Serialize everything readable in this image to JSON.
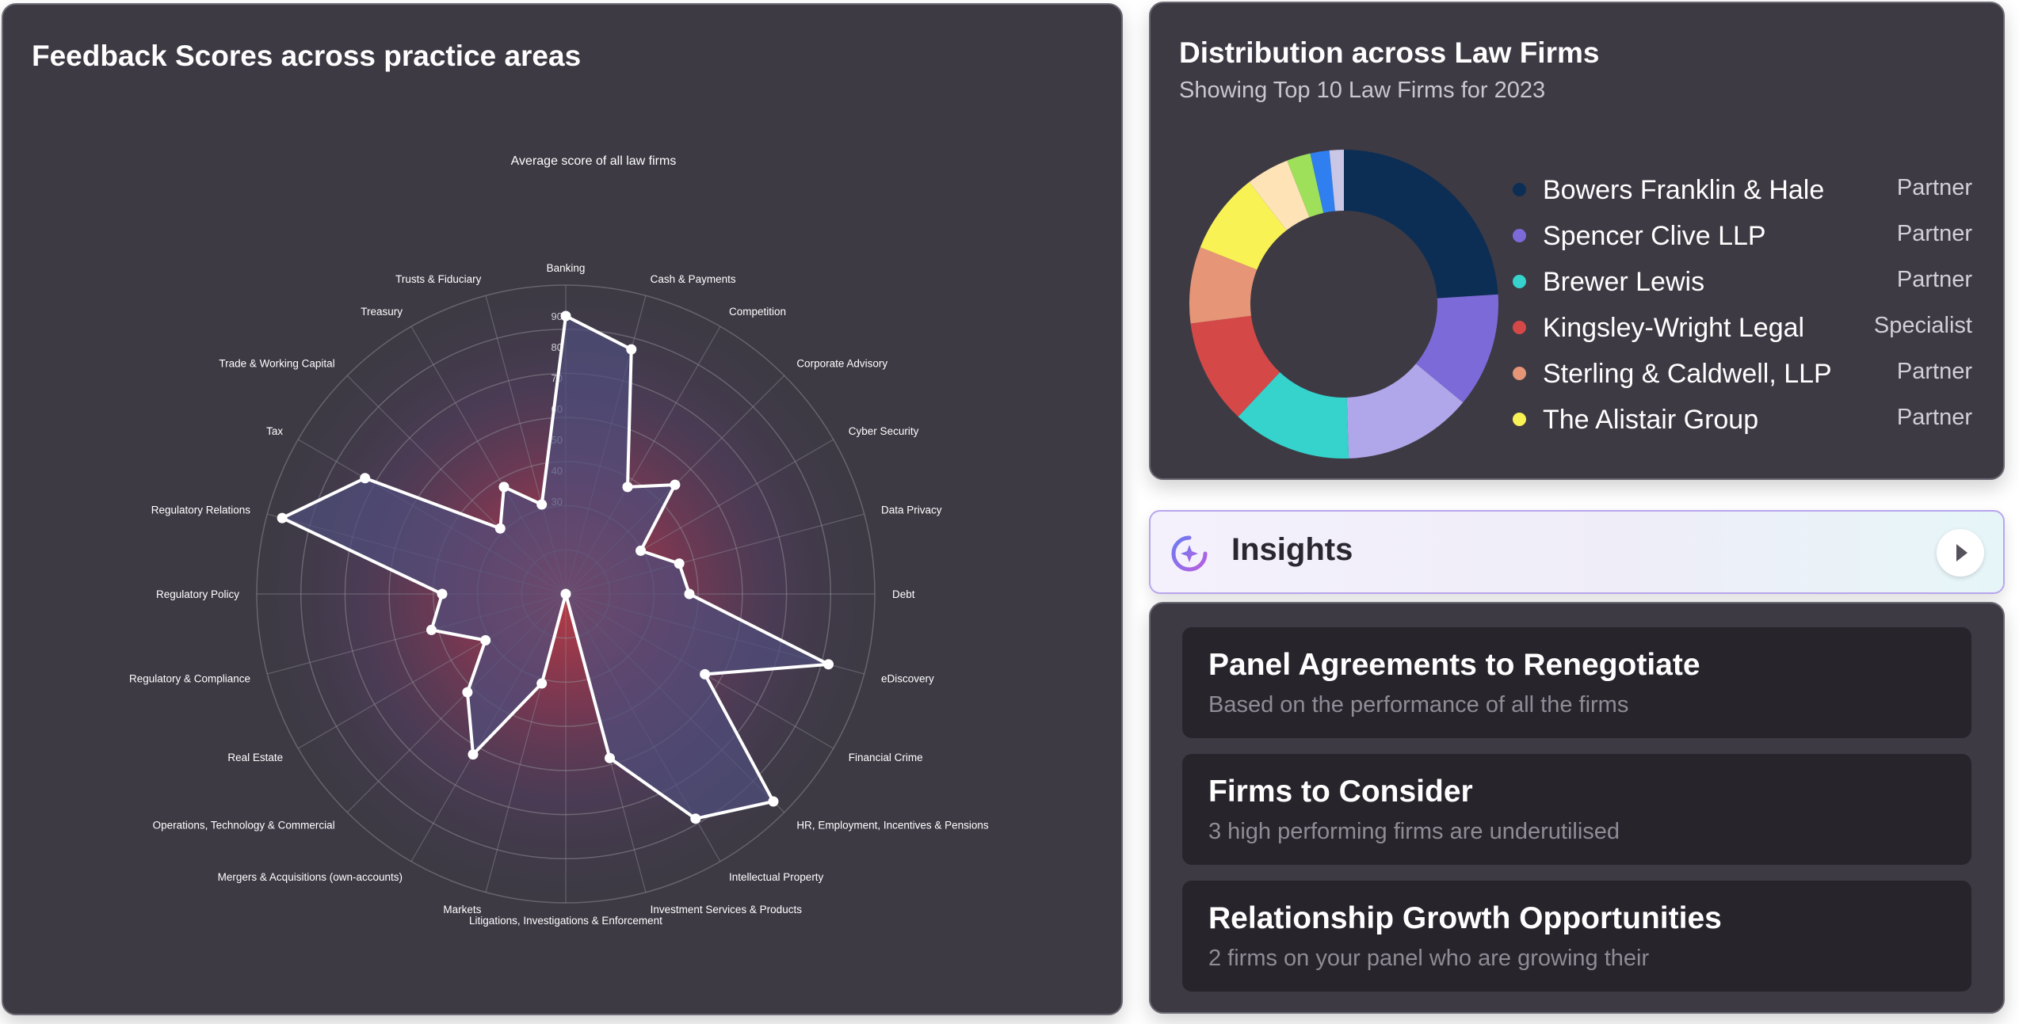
{
  "radar_panel": {
    "title": "Feedback Scores across practice areas"
  },
  "chart_data": [
    {
      "type": "radar",
      "title": "Average score of all law firms",
      "categories": [
        "Banking",
        "Cash & Payments",
        "Competition",
        "Corporate Advisory",
        "Cyber Security",
        "Data Privacy",
        "Debt",
        "eDiscovery",
        "Financial Crime",
        "HR, Employment, Incentives & Pensions",
        "Intellectual Property",
        "Investment Services & Products",
        "Litigations, Investigations & Enforcement",
        "Markets",
        "Mergers & Acquisitions (own-accounts)",
        "Operations, Technology & Commercial",
        "Real Estate",
        "Regulatory & Compliance",
        "Regulatory Policy",
        "Regulatory  Relations",
        "Tax",
        "Trade & Working Capital",
        "Treasury",
        "Trusts & Fiduciary"
      ],
      "values": [
        90,
        82,
        40,
        50,
        28,
        38,
        40,
        88,
        52,
        95,
        84,
        55,
        0,
        30,
        60,
        45,
        30,
        45,
        40,
        95,
        75,
        30,
        40,
        30
      ],
      "axis_ticks": [
        30,
        40,
        50,
        60,
        70,
        80,
        90
      ],
      "rlim": [
        0,
        100
      ],
      "line_color": "#ffffff",
      "fill_color": "#4f4d7c"
    },
    {
      "type": "pie",
      "subtype": "donut",
      "title": "Distribution across Law Firms",
      "subtitle": "Showing Top 10 Law Firms for 2023",
      "slices": [
        {
          "value": 24.0,
          "color": "#0c2e54"
        },
        {
          "value": 12.0,
          "color": "#7c6ad8"
        },
        {
          "value": 13.5,
          "color": "#b0a6ea"
        },
        {
          "value": 12.5,
          "color": "#35d3cc"
        },
        {
          "value": 11.0,
          "color": "#d44848"
        },
        {
          "value": 8.0,
          "color": "#e69577"
        },
        {
          "value": 8.5,
          "color": "#f9f255"
        },
        {
          "value": 4.5,
          "color": "#fde3b6"
        },
        {
          "value": 2.5,
          "color": "#9fe05a"
        },
        {
          "value": 2.0,
          "color": "#2f7ff0"
        },
        {
          "value": 1.5,
          "color": "#c9c6e6"
        }
      ],
      "legend": [
        {
          "name": "Bowers Franklin & Hale",
          "role": "Partner",
          "color": "#0c2e54"
        },
        {
          "name": "Spencer Clive LLP",
          "role": "Partner",
          "color": "#7c6ad8"
        },
        {
          "name": "Brewer Lewis",
          "role": "Partner",
          "color": "#35d3cc"
        },
        {
          "name": "Kingsley-Wright Legal",
          "role": "Specialist",
          "color": "#d44848"
        },
        {
          "name": "Sterling & Caldwell, LLP",
          "role": "Partner",
          "color": "#e69577"
        },
        {
          "name": "The Alistair Group",
          "role": "Partner",
          "color": "#f9f255"
        }
      ]
    }
  ],
  "insights": {
    "label": "Insights",
    "icon": "sparkle-refresh-icon",
    "action_icon": "play-icon",
    "cards": [
      {
        "title": "Panel Agreements to Renegotiate",
        "desc": "Based on the performance of all the firms"
      },
      {
        "title": "Firms to Consider",
        "desc": "3 high performing firms are underutilised"
      },
      {
        "title": "Relationship Growth Opportunities",
        "desc": "2 firms on your panel who are growing their"
      }
    ]
  }
}
